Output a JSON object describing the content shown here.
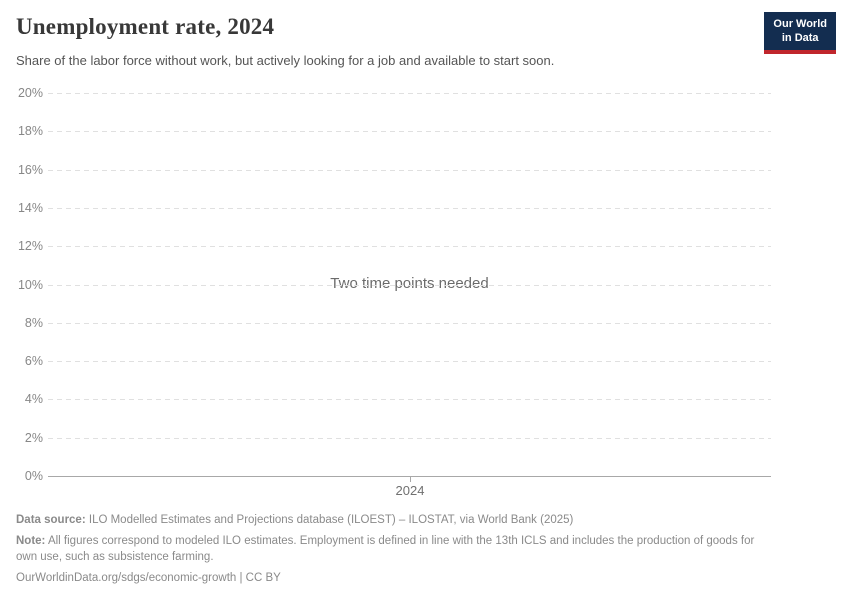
{
  "header": {
    "title": "Unemployment rate, 2024",
    "subtitle": "Share of the labor force without work, but actively looking for a job and available to start soon.",
    "logo": {
      "line1": "Our World",
      "line2": "in Data",
      "bg_color": "#132d50",
      "accent_color": "#c0262c"
    }
  },
  "chart_data": {
    "type": "line",
    "title": "Unemployment rate, 2024",
    "series": [],
    "empty_message": "Two time points needed",
    "xlabel": "",
    "ylabel": "",
    "x_ticks": [
      "2024"
    ],
    "y_ticks": [
      "0%",
      "2%",
      "4%",
      "6%",
      "8%",
      "10%",
      "12%",
      "14%",
      "16%",
      "18%",
      "20%"
    ],
    "y_tick_values": [
      0,
      2,
      4,
      6,
      8,
      10,
      12,
      14,
      16,
      18,
      20
    ],
    "ylim": [
      0,
      20
    ],
    "grid": "horizontal-dashed",
    "gridline_color": "#e0e0e0",
    "axis_color": "#a8a8a8",
    "tick_label_color": "#878787"
  },
  "footer": {
    "data_source_label": "Data source:",
    "data_source_text": "ILO Modelled Estimates and Projections database (ILOEST) – ILOSTAT, via World Bank (2025)",
    "note_label": "Note:",
    "note_text": "All figures correspond to modeled ILO estimates. Employment is defined in line with the 13th ICLS and includes the production of goods for own use, such as subsistence farming.",
    "url_text": "OurWorldinData.org/sdgs/economic-growth | CC BY"
  }
}
